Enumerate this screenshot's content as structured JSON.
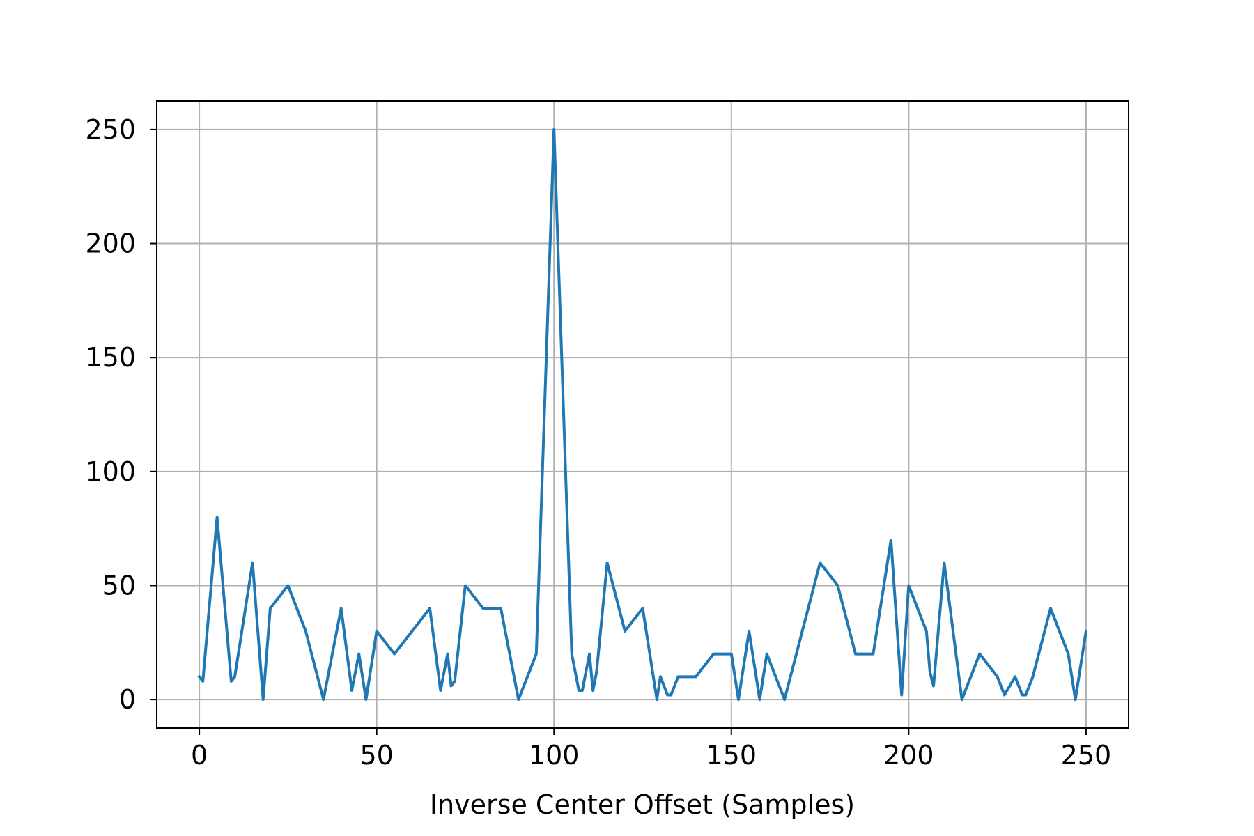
{
  "chart_data": {
    "type": "line",
    "xlabel": "Inverse Center Offset (Samples)",
    "ylabel": "",
    "xlim": [
      -12,
      262
    ],
    "ylim": [
      -12.5,
      262.5
    ],
    "xticks": [
      0,
      50,
      100,
      150,
      200,
      250
    ],
    "yticks": [
      0,
      50,
      100,
      150,
      200,
      250
    ],
    "grid": true,
    "series": [
      {
        "color": "#1f77b4",
        "x": [
          0,
          1,
          5,
          9,
          10,
          15,
          18,
          20,
          25,
          30,
          35,
          40,
          43,
          45,
          47,
          50,
          55,
          60,
          65,
          68,
          70,
          71,
          72,
          75,
          80,
          85,
          90,
          95,
          100,
          105,
          107,
          108,
          110,
          111,
          112,
          115,
          120,
          125,
          129,
          130,
          132,
          133,
          135,
          140,
          145,
          150,
          152,
          155,
          158,
          160,
          165,
          170,
          175,
          180,
          185,
          190,
          195,
          198,
          200,
          205,
          206,
          207,
          210,
          215,
          220,
          225,
          226,
          227,
          230,
          232,
          233,
          235,
          240,
          245,
          247,
          250
        ],
        "y": [
          10,
          8,
          80,
          8,
          10,
          60,
          0,
          40,
          50,
          30,
          0,
          40,
          4,
          20,
          0,
          30,
          20,
          30,
          40,
          4,
          20,
          6,
          8,
          50,
          40,
          40,
          0,
          20,
          250,
          20,
          4,
          4,
          20,
          4,
          12,
          60,
          30,
          40,
          0,
          10,
          2,
          2,
          10,
          10,
          20,
          20,
          0,
          30,
          0,
          20,
          0,
          30,
          60,
          50,
          20,
          20,
          70,
          2,
          50,
          30,
          12,
          6,
          60,
          0,
          20,
          10,
          6,
          2,
          10,
          2,
          2,
          10,
          40,
          20,
          0,
          30
        ]
      }
    ]
  }
}
